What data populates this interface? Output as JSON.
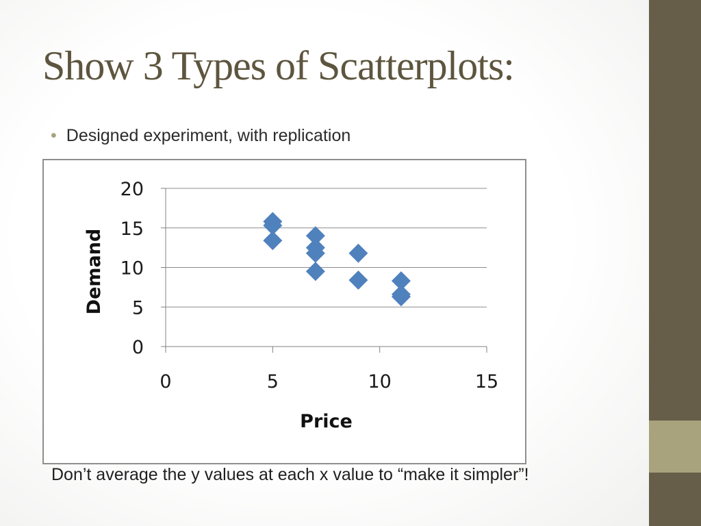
{
  "slide": {
    "title": "Show 3 Types of Scatterplots:",
    "bullet": "Designed experiment, with replication",
    "footer": "Don’t average the y values at each x value to “make it simpler”!"
  },
  "colors": {
    "bar": "#665e48",
    "accent": "#a8a27d",
    "title": "#5d553e",
    "marker": "#4f81bd"
  },
  "chart_data": {
    "type": "scatter",
    "title": "",
    "xlabel": "Price",
    "ylabel": "Demand",
    "xlim": [
      0,
      15
    ],
    "ylim": [
      0,
      20
    ],
    "xticks": [
      0,
      5,
      10,
      15
    ],
    "yticks": [
      0,
      5,
      10,
      15,
      20
    ],
    "grid": "horizontal",
    "legend": "none",
    "points": [
      {
        "x": 5,
        "y": 15.8
      },
      {
        "x": 5,
        "y": 15.3
      },
      {
        "x": 5,
        "y": 13.4
      },
      {
        "x": 7,
        "y": 14.0
      },
      {
        "x": 7,
        "y": 12.5
      },
      {
        "x": 7,
        "y": 11.8
      },
      {
        "x": 7,
        "y": 9.5
      },
      {
        "x": 9,
        "y": 11.8
      },
      {
        "x": 9,
        "y": 8.4
      },
      {
        "x": 11,
        "y": 8.3
      },
      {
        "x": 11,
        "y": 6.6
      },
      {
        "x": 11,
        "y": 6.3
      }
    ]
  }
}
